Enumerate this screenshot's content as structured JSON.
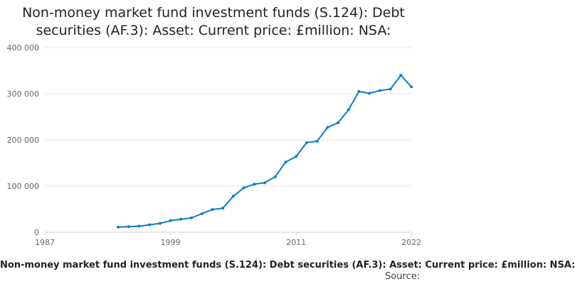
{
  "title": "Non-money market fund investment funds (S.124): Debt securities (AF.3): Asset: Current price: £million: NSA:",
  "caption": "Non-money market fund investment funds (S.124): Debt securities (AF.3): Asset: Current price: £million: NSA:",
  "source": "Source:",
  "colors": {
    "line": "#0f7dc2",
    "grid": "#e6e6e6",
    "axis": "#cccccc"
  },
  "chart_data": {
    "type": "line",
    "title": "Non-money market fund investment funds (S.124): Debt securities (AF.3): Asset: Current price: £million: NSA:",
    "xlabel": "",
    "ylabel": "",
    "xlim": [
      1987,
      2022
    ],
    "ylim": [
      0,
      400000
    ],
    "x_ticks": [
      1987,
      1999,
      2011,
      2022
    ],
    "x_tick_labels": [
      "1987",
      "1999",
      "2011",
      "2022"
    ],
    "y_ticks": [
      0,
      100000,
      200000,
      300000,
      400000
    ],
    "y_tick_labels": [
      "0",
      "100 000",
      "200 000",
      "300 000",
      "400 000"
    ],
    "grid": "horizontal",
    "series": [
      {
        "x": [
          1994,
          1995,
          1996,
          1997,
          1998,
          1999,
          2000,
          2001,
          2002,
          2003,
          2004,
          2005,
          2006,
          2007,
          2008,
          2009,
          2010,
          2011,
          2012,
          2013,
          2014,
          2015,
          2016,
          2017,
          2018,
          2019,
          2020,
          2021,
          2022
        ],
        "y": [
          11000,
          12000,
          13000,
          16000,
          19000,
          25000,
          28000,
          31000,
          40000,
          49000,
          52000,
          78000,
          96000,
          104000,
          107000,
          120000,
          152000,
          164000,
          194000,
          197000,
          227000,
          237000,
          265000,
          305000,
          301000,
          307000,
          310000,
          340000,
          315000
        ]
      }
    ]
  }
}
